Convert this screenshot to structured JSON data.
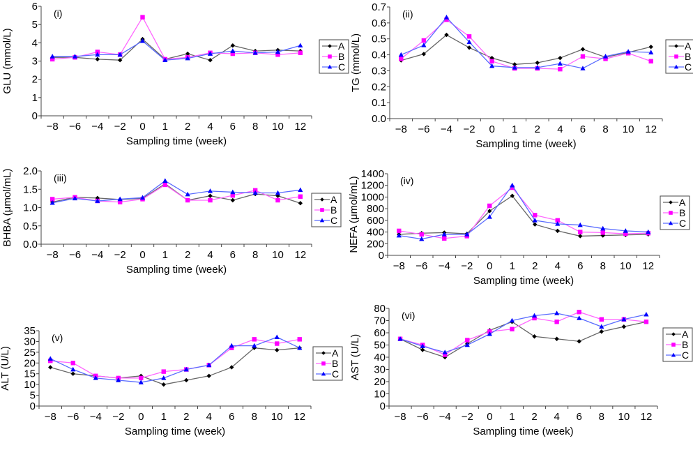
{
  "chart_data": [
    {
      "type": "line",
      "panel_label": "(i)",
      "ylabel": "GLU (mmol/L)",
      "xlabel": "Sampling time (week)",
      "categories": [
        "−8",
        "−6",
        "−4",
        "−2",
        "0",
        "1",
        "2",
        "4",
        "6",
        "8",
        "10",
        "12"
      ],
      "ylim": [
        0,
        6
      ],
      "y_ticks": [
        "0",
        "1",
        "2",
        "3",
        "4",
        "5",
        "6"
      ],
      "legend_position": "right",
      "grid": false,
      "series": [
        {
          "name": "A",
          "color": "#000000",
          "line_color": "#666666",
          "marker": "diamond",
          "values": [
            3.2,
            3.2,
            3.1,
            3.05,
            4.2,
            3.1,
            3.4,
            3.05,
            3.85,
            3.55,
            3.6,
            3.55
          ]
        },
        {
          "name": "B",
          "color": "#ff00ff",
          "line_color": "#ff66ff",
          "marker": "square",
          "values": [
            3.1,
            3.2,
            3.5,
            3.35,
            5.4,
            3.1,
            3.2,
            3.45,
            3.4,
            3.45,
            3.35,
            3.45
          ]
        },
        {
          "name": "C",
          "color": "#0000ff",
          "line_color": "#5a6cff",
          "marker": "triangle",
          "values": [
            3.25,
            3.25,
            3.35,
            3.35,
            4.1,
            3.05,
            3.15,
            3.4,
            3.55,
            3.45,
            3.5,
            3.85
          ]
        }
      ]
    },
    {
      "type": "line",
      "panel_label": "(ii)",
      "ylabel": "TG (mmol/L)",
      "xlabel": "Sampling time (week)",
      "categories": [
        "−8",
        "−6",
        "−4",
        "−2",
        "0",
        "1",
        "2",
        "4",
        "6",
        "8",
        "10",
        "12"
      ],
      "ylim": [
        0,
        0.7
      ],
      "y_ticks": [
        "0.0",
        "0.1",
        "0.2",
        "0.3",
        "0.4",
        "0.5",
        "0.6",
        "0.7"
      ],
      "legend_position": "right",
      "grid": false,
      "series": [
        {
          "name": "A",
          "color": "#000000",
          "line_color": "#666666",
          "marker": "diamond",
          "values": [
            0.365,
            0.405,
            0.525,
            0.445,
            0.38,
            0.34,
            0.35,
            0.38,
            0.435,
            0.385,
            0.415,
            0.45
          ]
        },
        {
          "name": "B",
          "color": "#ff00ff",
          "line_color": "#ff66ff",
          "marker": "square",
          "values": [
            0.375,
            0.49,
            0.62,
            0.515,
            0.36,
            0.315,
            0.315,
            0.31,
            0.39,
            0.375,
            0.41,
            0.36
          ]
        },
        {
          "name": "C",
          "color": "#0000ff",
          "line_color": "#5a6cff",
          "marker": "triangle",
          "values": [
            0.4,
            0.46,
            0.635,
            0.48,
            0.33,
            0.32,
            0.32,
            0.345,
            0.315,
            0.39,
            0.42,
            0.415
          ]
        }
      ]
    },
    {
      "type": "line",
      "panel_label": "(iii)",
      "ylabel": "BHBA (μmol/mL)",
      "xlabel": "Sampling time (week)",
      "categories": [
        "−8",
        "−6",
        "−4",
        "−2",
        "0",
        "1",
        "2",
        "4",
        "6",
        "8",
        "10",
        "12"
      ],
      "ylim": [
        0,
        2.0
      ],
      "y_ticks": [
        "0.0",
        "0.5",
        "1.0",
        "1.5",
        "2.0"
      ],
      "legend_position": "right",
      "grid": false,
      "series": [
        {
          "name": "A",
          "color": "#000000",
          "line_color": "#666666",
          "marker": "diamond",
          "values": [
            1.15,
            1.28,
            1.26,
            1.22,
            1.25,
            1.65,
            1.2,
            1.32,
            1.2,
            1.37,
            1.32,
            1.12
          ]
        },
        {
          "name": "B",
          "color": "#ff00ff",
          "line_color": "#ff66ff",
          "marker": "square",
          "values": [
            1.23,
            1.28,
            1.18,
            1.15,
            1.23,
            1.62,
            1.2,
            1.2,
            1.33,
            1.47,
            1.2,
            1.3
          ]
        },
        {
          "name": "C",
          "color": "#0000ff",
          "line_color": "#5a6cff",
          "marker": "triangle",
          "values": [
            1.13,
            1.25,
            1.18,
            1.23,
            1.27,
            1.73,
            1.36,
            1.45,
            1.42,
            1.4,
            1.4,
            1.48
          ]
        }
      ]
    },
    {
      "type": "line",
      "panel_label": "(iv)",
      "ylabel": "NEFA (μmol/mL)",
      "xlabel": "Sampling time (week)",
      "categories": [
        "−8",
        "−6",
        "−4",
        "−2",
        "0",
        "1",
        "2",
        "4",
        "6",
        "8",
        "10",
        "12"
      ],
      "ylim": [
        0,
        1400
      ],
      "y_ticks": [
        "0",
        "200",
        "400",
        "600",
        "800",
        "1000",
        "1200",
        "1400"
      ],
      "legend_position": "right",
      "grid": false,
      "series": [
        {
          "name": "A",
          "color": "#000000",
          "line_color": "#666666",
          "marker": "diamond",
          "values": [
            360,
            380,
            390,
            370,
            760,
            1020,
            530,
            420,
            330,
            340,
            350,
            360
          ]
        },
        {
          "name": "B",
          "color": "#ff00ff",
          "line_color": "#ff66ff",
          "marker": "square",
          "values": [
            420,
            360,
            290,
            330,
            850,
            1160,
            690,
            600,
            400,
            390,
            370,
            380
          ]
        },
        {
          "name": "C",
          "color": "#0000ff",
          "line_color": "#5a6cff",
          "marker": "triangle",
          "values": [
            340,
            280,
            360,
            360,
            660,
            1200,
            600,
            540,
            520,
            460,
            420,
            400
          ]
        }
      ]
    },
    {
      "type": "line",
      "panel_label": "(v)",
      "ylabel": "ALT (U/L)",
      "xlabel": "Sampling time (week)",
      "categories": [
        "−8",
        "−6",
        "−4",
        "−2",
        "0",
        "1",
        "2",
        "4",
        "6",
        "8",
        "10",
        "12"
      ],
      "ylim": [
        0,
        35
      ],
      "y_ticks": [
        "0",
        "5",
        "10",
        "15",
        "20",
        "25",
        "30",
        "35"
      ],
      "legend_position": "right",
      "grid": false,
      "series": [
        {
          "name": "A",
          "color": "#000000",
          "line_color": "#666666",
          "marker": "diamond",
          "values": [
            18,
            15,
            14,
            13,
            14,
            10,
            12,
            14,
            18,
            27,
            26,
            27
          ]
        },
        {
          "name": "B",
          "color": "#ff00ff",
          "line_color": "#ff66ff",
          "marker": "square",
          "values": [
            21,
            20,
            14,
            13,
            13,
            16,
            17,
            19,
            27,
            31,
            29,
            31
          ]
        },
        {
          "name": "C",
          "color": "#0000ff",
          "line_color": "#5a6cff",
          "marker": "triangle",
          "values": [
            22,
            17,
            13,
            12,
            11,
            13,
            17,
            19,
            28,
            28,
            32,
            27
          ]
        }
      ]
    },
    {
      "type": "line",
      "panel_label": "(vi)",
      "ylabel": "AST (U/L)",
      "xlabel": "Sampling time (week)",
      "categories": [
        "−8",
        "−6",
        "−4",
        "−2",
        "0",
        "1",
        "2",
        "4",
        "6",
        "8",
        "10",
        "12"
      ],
      "ylim": [
        0,
        80
      ],
      "y_ticks": [
        "0",
        "10",
        "20",
        "30",
        "40",
        "50",
        "60",
        "70",
        "80"
      ],
      "legend_position": "right",
      "grid": false,
      "series": [
        {
          "name": "A",
          "color": "#000000",
          "line_color": "#666666",
          "marker": "diamond",
          "values": [
            55,
            46,
            40,
            51,
            62,
            69,
            57,
            55,
            53,
            61,
            65,
            69
          ]
        },
        {
          "name": "B",
          "color": "#ff00ff",
          "line_color": "#ff66ff",
          "marker": "square",
          "values": [
            55,
            50,
            42,
            54,
            61,
            63,
            72,
            69,
            77,
            71,
            71,
            69
          ]
        },
        {
          "name": "C",
          "color": "#0000ff",
          "line_color": "#5a6cff",
          "marker": "triangle",
          "values": [
            55,
            49,
            44,
            50,
            59,
            70,
            74,
            76,
            72,
            65,
            71,
            75
          ]
        }
      ]
    }
  ]
}
